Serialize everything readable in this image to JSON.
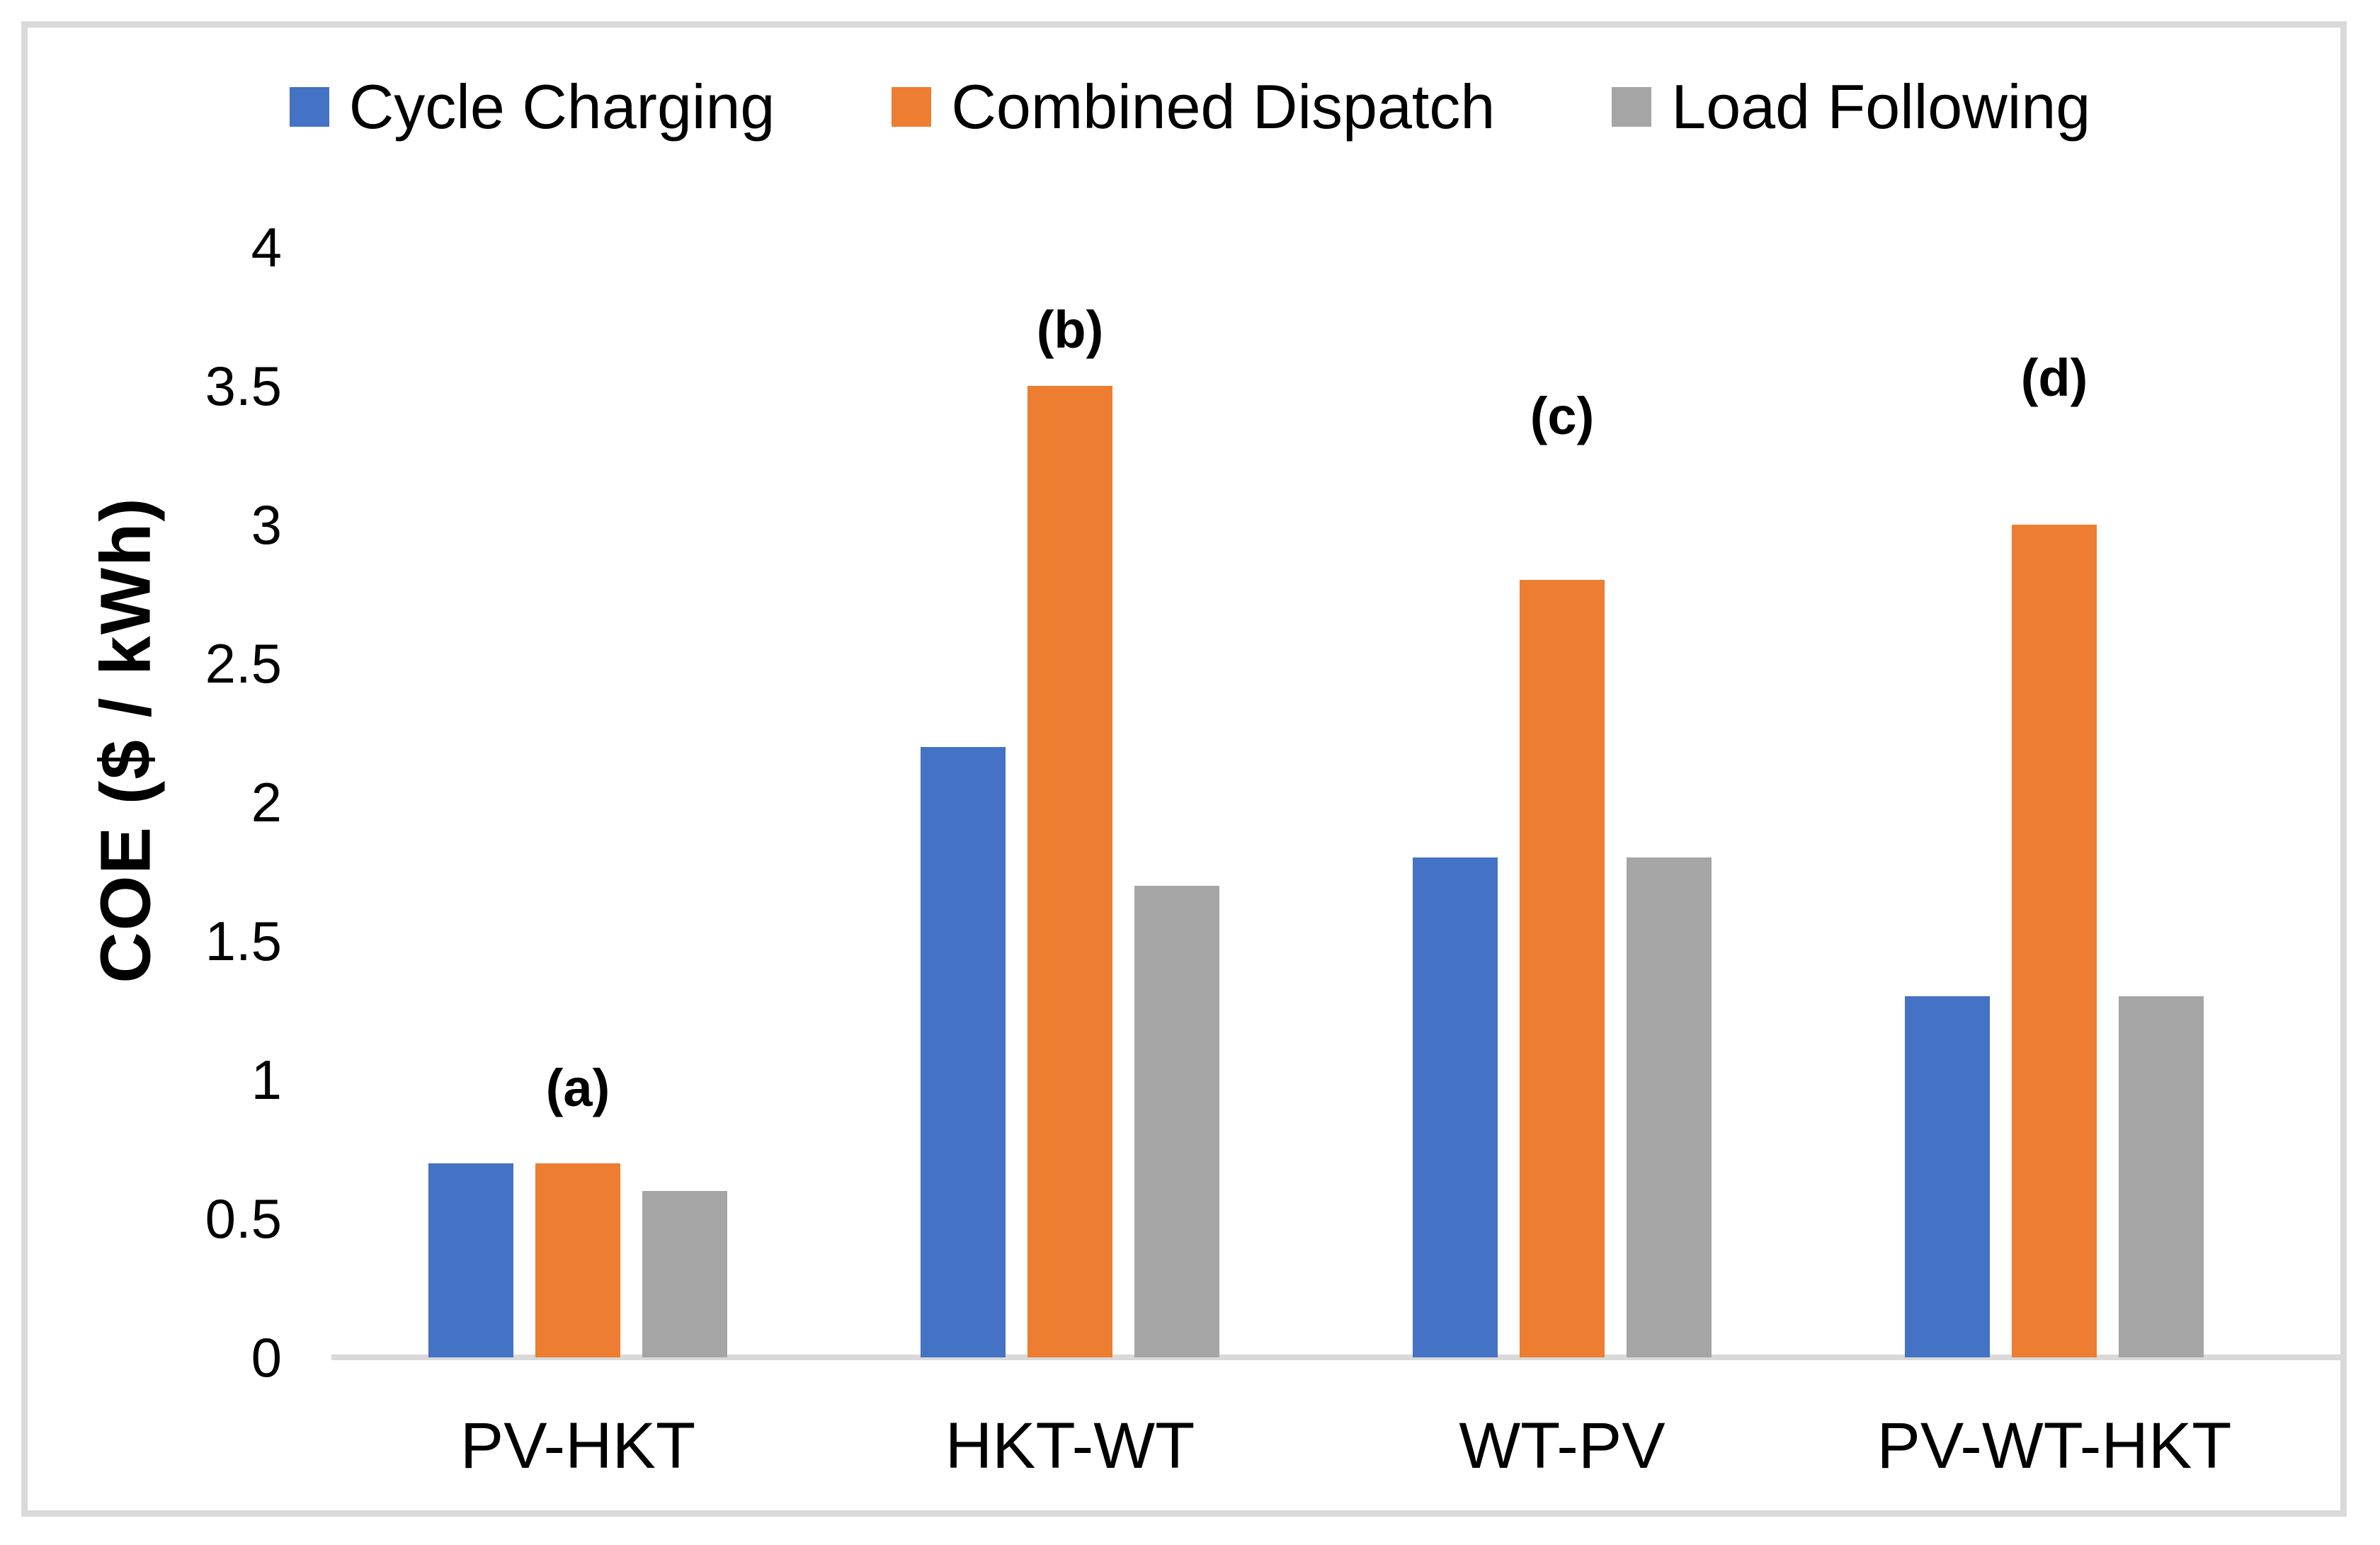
{
  "figure": {
    "background": "#FFFFFF",
    "border_color": "#D9D9D9"
  },
  "legend": {
    "position": "top",
    "items": [
      {
        "label": "Cycle Charging",
        "color": "#4472C4"
      },
      {
        "label": "Combined Dispatch",
        "color": "#ED7D31"
      },
      {
        "label": "Load Following",
        "color": "#A5A5A5"
      }
    ]
  },
  "chart_data": {
    "type": "bar",
    "title": "",
    "categories": [
      "PV-HKT",
      "HKT-WT",
      "WT-PV",
      "PV-WT-HKT"
    ],
    "series": [
      {
        "name": "Cycle Charging",
        "color": "#4472C4",
        "values": [
          0.7,
          2.2,
          1.8,
          1.3
        ]
      },
      {
        "name": "Combined Dispatch",
        "color": "#ED7D31",
        "values": [
          0.7,
          3.5,
          2.8,
          3.0
        ]
      },
      {
        "name": "Load Following",
        "color": "#A5A5A5",
        "values": [
          0.6,
          1.7,
          1.8,
          1.3
        ]
      }
    ],
    "annotations": [
      {
        "label": "(a)",
        "category": "PV-HKT"
      },
      {
        "label": "(b)",
        "category": "HKT-WT"
      },
      {
        "label": "(c)",
        "category": "WT-PV"
      },
      {
        "label": "(d)",
        "category": "PV-WT-HKT"
      }
    ],
    "xlabel": "",
    "ylabel": "COE  ($ / kWh)",
    "ylim": [
      0,
      4
    ],
    "ytick_step": 0.5,
    "ytick_labels": [
      "0",
      "0.5",
      "1",
      "1.5",
      "2",
      "2.5",
      "3",
      "3.5",
      "4"
    ],
    "grid": false,
    "legend_position": "top",
    "axis_line_color": "#D9D9D9"
  }
}
